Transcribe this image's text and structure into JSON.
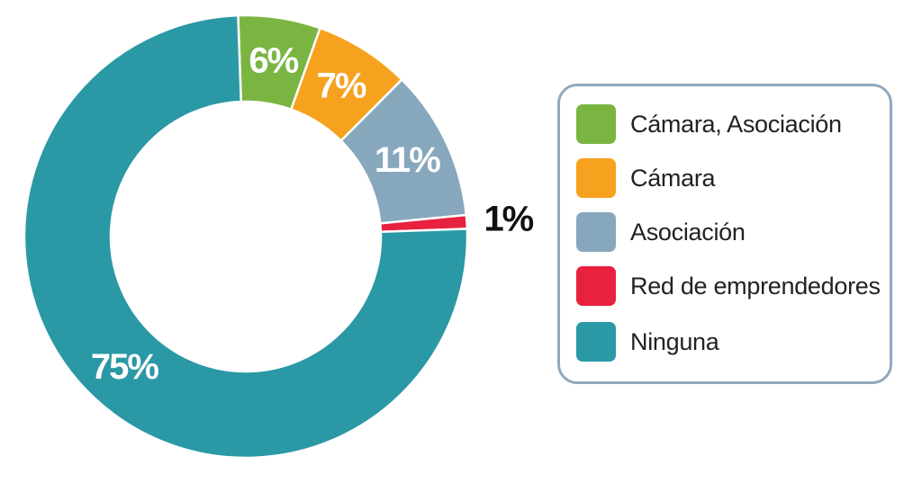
{
  "chart_data": {
    "type": "pie",
    "donut": true,
    "title": "",
    "legend_position": "right",
    "slices": [
      {
        "name": "Cámara, Asociación",
        "value": 6,
        "label": "6%",
        "color": "#7ab542",
        "label_color": "#ffffff"
      },
      {
        "name": "Cámara",
        "value": 7,
        "label": "7%",
        "color": "#f6a21e",
        "label_color": "#ffffff"
      },
      {
        "name": "Asociación",
        "value": 11,
        "label": "11%",
        "color": "#87a7bd",
        "label_color": "#ffffff"
      },
      {
        "name": "Red de emprendedores",
        "value": 1,
        "label": "1%",
        "color": "#e8213f",
        "label_color": "#111111"
      },
      {
        "name": "Ninguna",
        "value": 75,
        "label": "75%",
        "color": "#2a98a5",
        "label_color": "#ffffff"
      }
    ]
  }
}
